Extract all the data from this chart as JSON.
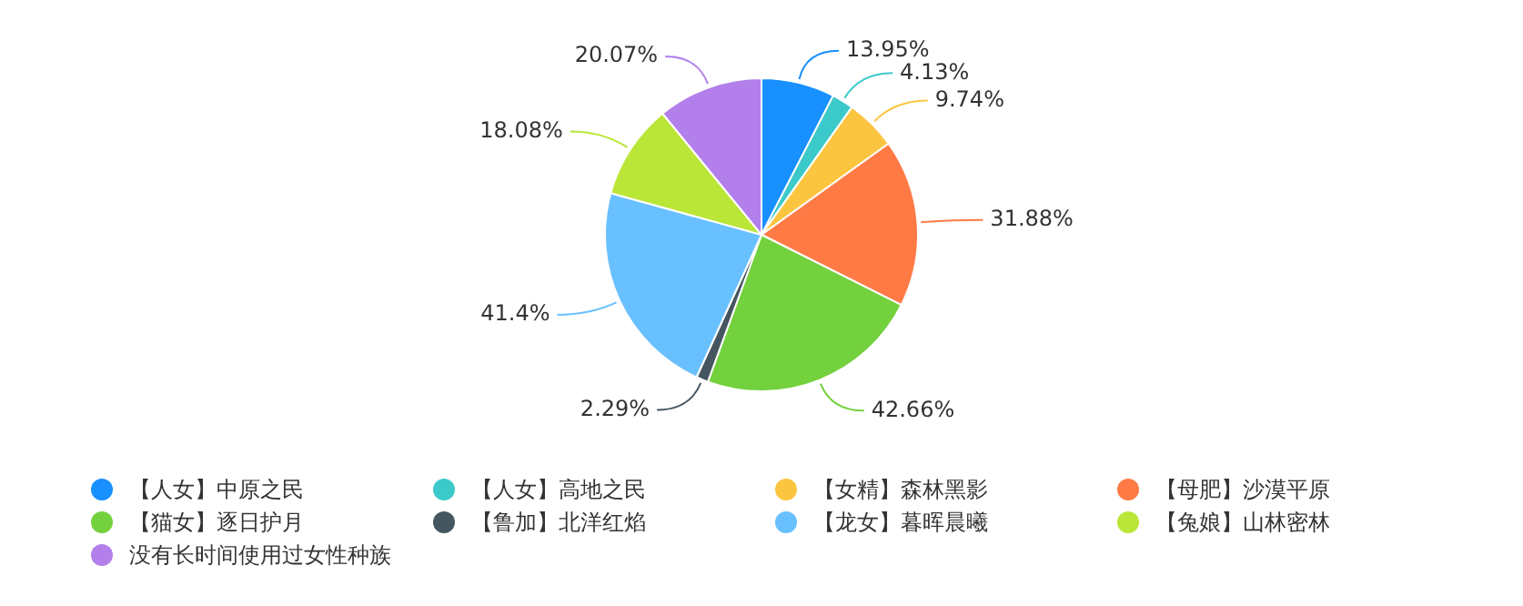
{
  "chart_data": {
    "type": "pie",
    "legend": "bottom",
    "categories": [
      "【人女】中原之民",
      "【人女】高地之民",
      "【女精】森林黑影",
      "【母肥】沙漠平原",
      "【猫女】逐日护月",
      "【鲁加】北洋红焰",
      "【龙女】暮晖晨曦",
      "【兔娘】山林密林",
      "没有长时间使用过女性种族"
    ],
    "values": [
      13.95,
      4.13,
      9.74,
      31.88,
      42.66,
      2.29,
      41.4,
      18.08,
      20.07
    ],
    "value_labels": [
      "13.95%",
      "4.13%",
      "9.74%",
      "31.88%",
      "42.66%",
      "2.29%",
      "41.4%",
      "18.08%",
      "20.07%"
    ],
    "colors": [
      "#1890ff",
      "#3cc9c9",
      "#fbc53f",
      "#ff7a45",
      "#73d13d",
      "#455660",
      "#69c0ff",
      "#bae637",
      "#b37feb"
    ]
  }
}
